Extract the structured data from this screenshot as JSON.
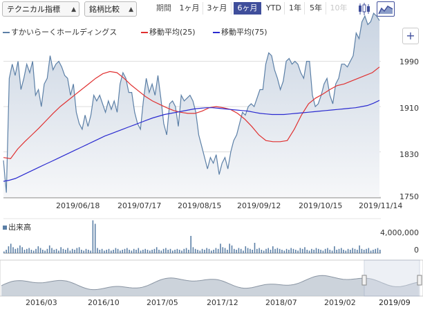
{
  "toolbar": {
    "indicator_select": "テクニカル指標",
    "compare_select": "銘柄比較",
    "period_label": "期間",
    "periods": [
      "1ヶ月",
      "3ヶ月",
      "6ヶ月",
      "YTD",
      "1年",
      "5年",
      "10年"
    ],
    "active_period": "6ヶ月",
    "disabled_period": "10年",
    "icons": [
      "candlestick-icon",
      "area-chart-icon"
    ],
    "active_icon": "area-chart-icon"
  },
  "legend": {
    "items": [
      {
        "label": "すかいらーくホールディングス",
        "color": "#5b7fa6"
      },
      {
        "label": "移動平均(25)",
        "color": "#e03030"
      },
      {
        "label": "移動平均(75)",
        "color": "#2a2ad0"
      }
    ],
    "add_button": "+"
  },
  "colors": {
    "price_line": "#5b7fa6",
    "price_fill_top": "#c9d4e2",
    "ma25": "#e03030",
    "ma75": "#2a2ad0",
    "volume": "#5b7fa6",
    "navigator_fill": "#b7c0cc",
    "active": "#3f4e9b"
  },
  "volume": {
    "label": "出来高",
    "y_ticks": [
      "4,000,000",
      "0"
    ]
  },
  "navigator": {
    "ticks": [
      "2016/03",
      "2016/10",
      "2017/05",
      "2017/12",
      "2018/07",
      "2019/02",
      "2019/09"
    ],
    "current": "2019/09"
  },
  "chart_data": {
    "type": "line",
    "title": "",
    "y_ticks": [
      1990,
      1910,
      1830,
      1750
    ],
    "ylim": [
      1750,
      2025
    ],
    "x_ticks": [
      "2019/06/18",
      "2019/07/17",
      "2019/08/15",
      "2019/09/12",
      "2019/10/15",
      "2019/11/14"
    ],
    "grid": true,
    "series": [
      {
        "name": "すかいらーくホールディングス",
        "values": [
          1815,
          1758,
          1960,
          1985,
          1965,
          1990,
          1940,
          1960,
          1985,
          1970,
          1990,
          1930,
          1940,
          1910,
          1950,
          1960,
          2000,
          1975,
          1985,
          1990,
          1980,
          1965,
          1960,
          1930,
          1950,
          1900,
          1880,
          1870,
          1895,
          1875,
          1895,
          1930,
          1920,
          1930,
          1915,
          1900,
          1920,
          1905,
          1920,
          1900,
          1950,
          1970,
          1960,
          1935,
          1935,
          1900,
          1880,
          1870,
          1920,
          1960,
          1935,
          1950,
          1930,
          1965,
          1925,
          1880,
          1860,
          1915,
          1920,
          1910,
          1875,
          1930,
          1920,
          1925,
          1930,
          1920,
          1900,
          1860,
          1840,
          1820,
          1800,
          1820,
          1810,
          1825,
          1790,
          1810,
          1820,
          1800,
          1830,
          1850,
          1860,
          1880,
          1900,
          1895,
          1910,
          1915,
          1910,
          1925,
          1940,
          1940,
          1985,
          2005,
          2000,
          1975,
          1960,
          1940,
          1955,
          1990,
          1995,
          1985,
          1990,
          1985,
          1970,
          1960,
          1990,
          1990,
          1930,
          1910,
          1915,
          1930,
          1950,
          1960,
          1930,
          1915,
          1950,
          1960,
          1985,
          1985,
          1980,
          1990,
          2000,
          2040,
          2030,
          2060,
          2070,
          2055,
          2060,
          2075,
          2070,
          2062
        ]
      },
      {
        "name": "移動平均(25)",
        "values": [
          1820,
          1818,
          1835,
          1848,
          1860,
          1872,
          1885,
          1898,
          1910,
          1920,
          1930,
          1940,
          1950,
          1960,
          1968,
          1972,
          1970,
          1960,
          1948,
          1938,
          1928,
          1920,
          1914,
          1908,
          1903,
          1900,
          1898,
          1898,
          1902,
          1908,
          1910,
          1908,
          1905,
          1898,
          1888,
          1875,
          1860,
          1850,
          1848,
          1848,
          1850,
          1870,
          1895,
          1915,
          1925,
          1932,
          1940,
          1947,
          1950,
          1955,
          1960,
          1965,
          1970,
          1980
        ]
      },
      {
        "name": "移動平均(75)",
        "values": [
          1778,
          1780,
          1783,
          1788,
          1793,
          1798,
          1803,
          1808,
          1813,
          1818,
          1823,
          1828,
          1833,
          1838,
          1843,
          1848,
          1853,
          1858,
          1862,
          1866,
          1870,
          1874,
          1878,
          1882,
          1886,
          1890,
          1893,
          1896,
          1898,
          1900,
          1902,
          1904,
          1906,
          1907,
          1908,
          1908,
          1907,
          1906,
          1905,
          1904,
          1903,
          1902,
          1900,
          1898,
          1897,
          1896,
          1896,
          1896,
          1897,
          1898,
          1899,
          1900,
          1901,
          1902,
          1903,
          1904,
          1905,
          1906,
          1907,
          1908,
          1910,
          1912,
          1916,
          1921
        ]
      }
    ]
  },
  "volume_data": {
    "values": [
      0.2,
      0.4,
      0.8,
      1.1,
      0.7,
      0.5,
      0.6,
      0.9,
      0.7,
      0.4,
      0.5,
      0.6,
      0.4,
      0.3,
      0.5,
      0.8,
      0.6,
      0.4,
      0.3,
      0.5,
      0.9,
      0.6,
      0.4,
      0.5,
      0.3,
      0.7,
      0.5,
      0.4,
      0.6,
      0.3,
      0.5,
      0.4,
      0.6,
      0.7,
      0.4,
      0.3,
      0.5,
      0.4,
      0.3,
      3.8,
      3.4,
      0.6,
      0.4,
      0.5,
      0.3,
      0.4,
      0.5,
      0.3,
      0.4,
      0.6,
      0.5,
      0.3,
      0.4,
      0.5,
      0.6,
      0.4,
      0.3,
      0.5,
      0.4,
      0.6,
      0.3,
      0.4,
      0.5,
      0.4,
      0.3,
      0.4,
      0.5,
      0.7,
      0.4,
      0.3,
      0.5,
      0.6,
      0.4,
      0.5,
      0.3,
      0.4,
      0.5,
      0.4,
      0.3,
      0.5,
      0.6,
      0.4,
      2.0,
      0.7,
      0.5,
      0.4,
      0.3,
      0.5,
      0.4,
      0.6,
      0.5,
      0.3,
      0.4,
      0.6,
      0.5,
      1.1,
      0.7,
      0.6,
      0.4,
      1.1,
      0.9,
      0.5,
      0.4,
      0.6,
      0.5,
      0.3,
      0.8,
      0.6,
      0.5,
      0.4,
      1.2,
      0.5,
      0.6,
      0.4,
      0.3,
      0.5,
      0.6,
      0.4,
      0.8,
      0.5,
      0.6,
      0.5,
      0.4,
      0.3,
      0.5,
      0.4,
      0.6,
      0.5,
      0.4,
      0.3,
      0.6,
      0.5,
      0.7,
      0.4,
      0.3,
      0.5,
      0.4,
      0.6,
      0.5,
      0.4,
      0.3,
      0.5,
      0.6,
      0.4,
      0.3,
      0.8,
      0.4,
      0.5,
      0.6,
      0.4,
      0.3,
      0.5,
      0.4,
      0.6,
      0.5,
      0.4,
      0.9,
      0.5,
      0.4,
      0.5,
      0.6,
      0.3,
      0.4,
      0.5,
      0.6,
      0.4
    ]
  }
}
